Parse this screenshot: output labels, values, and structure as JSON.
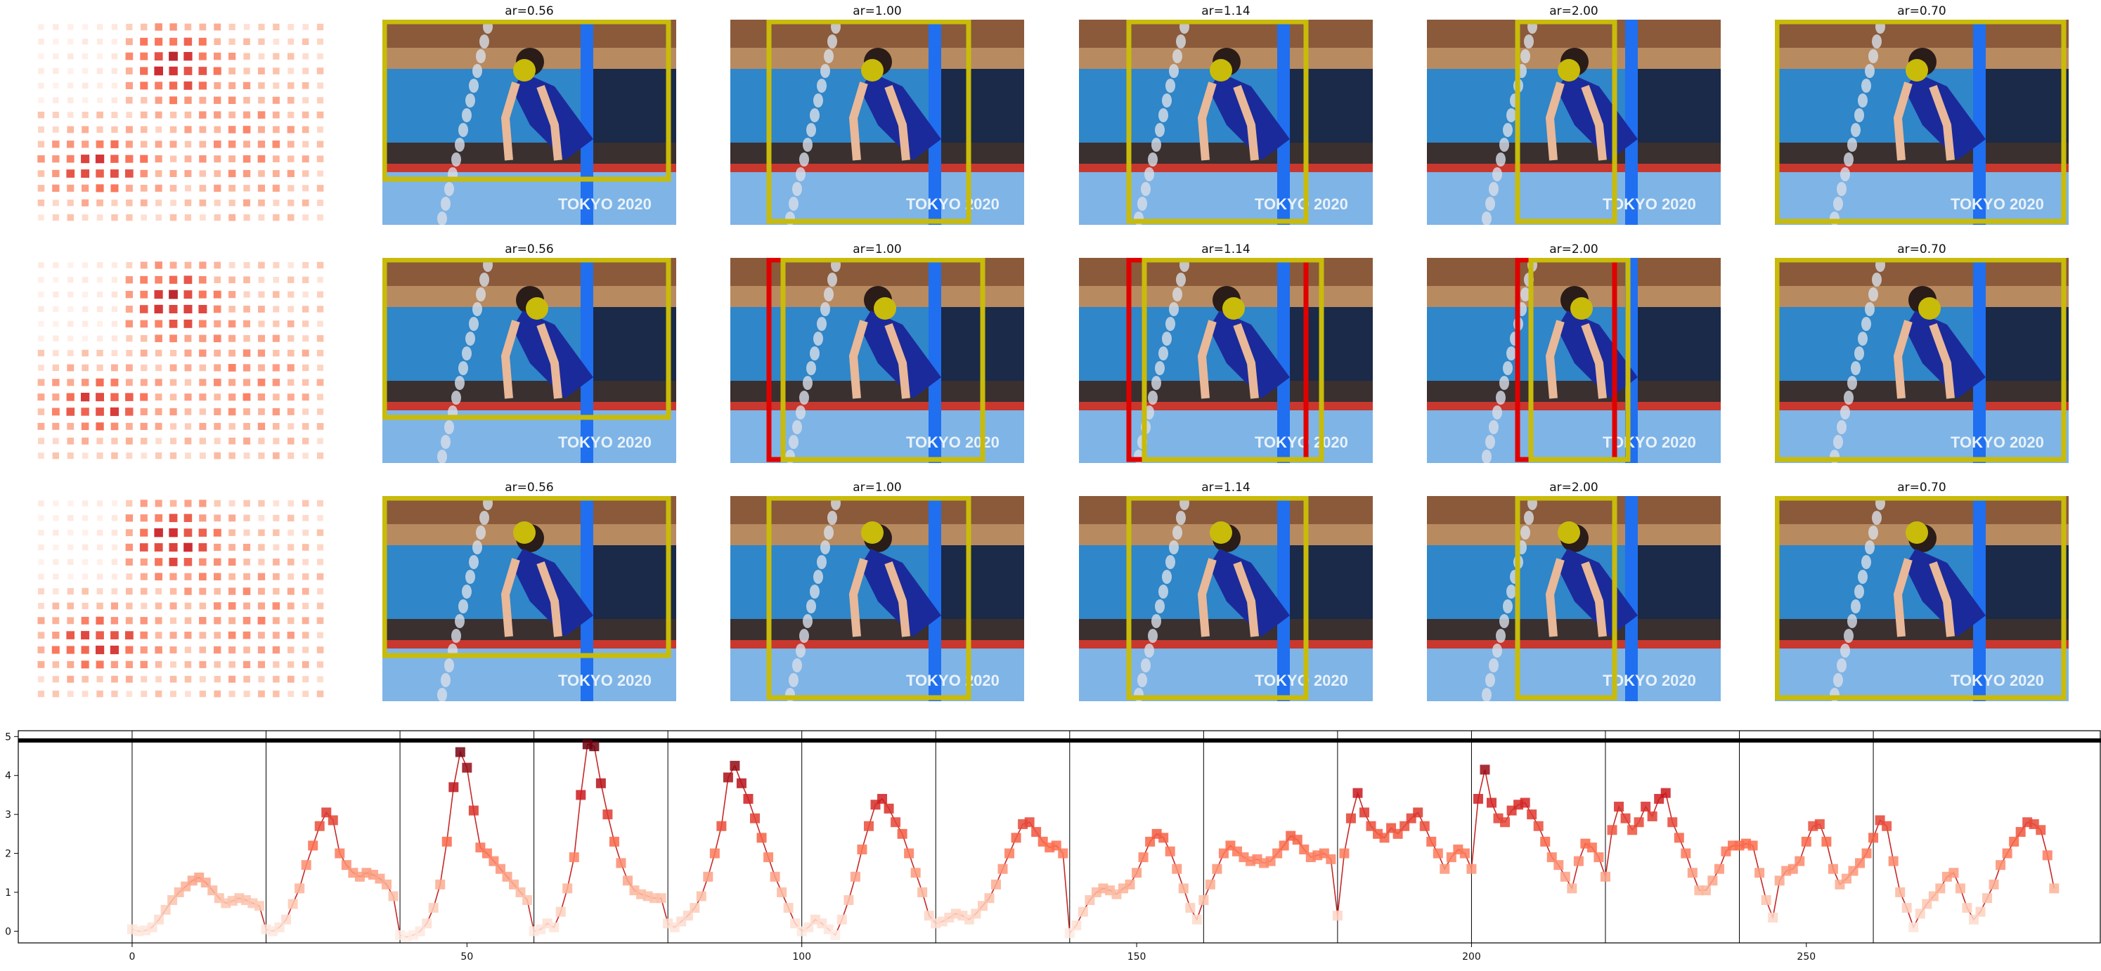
{
  "panels": {
    "aspect_ratios": [
      "ar=0.56",
      "ar=1.00",
      "ar=1.14",
      "ar=2.00",
      "ar=0.70"
    ],
    "crop_color": "#c8bb0a",
    "alt_crop_color": "#e00000",
    "photo_text": "TOKYO 2020"
  },
  "chart_data": {
    "type": "line",
    "x_ticks": [
      0,
      50,
      100,
      150,
      200,
      250
    ],
    "y_ticks": [
      0,
      1,
      2,
      3,
      4,
      5
    ],
    "xlim": [
      -17,
      294
    ],
    "ylim": [
      -0.3,
      5.15
    ],
    "threshold": 4.9,
    "segment_starts": [
      0,
      20,
      40,
      60,
      80,
      100,
      120,
      140,
      160,
      180,
      200,
      220,
      240,
      260
    ],
    "grid": false,
    "line_color": "#c62828",
    "values": [
      0.05,
      0.0,
      0.02,
      0.1,
      0.3,
      0.55,
      0.8,
      1.0,
      1.15,
      1.3,
      1.38,
      1.25,
      1.05,
      0.85,
      0.72,
      0.78,
      0.85,
      0.8,
      0.72,
      0.65,
      0.05,
      0.0,
      0.1,
      0.3,
      0.7,
      1.1,
      1.7,
      2.2,
      2.7,
      3.05,
      2.85,
      2.0,
      1.7,
      1.5,
      1.4,
      1.5,
      1.45,
      1.35,
      1.2,
      0.9,
      -0.1,
      -0.15,
      -0.1,
      0.0,
      0.2,
      0.6,
      1.2,
      2.3,
      3.7,
      4.6,
      4.2,
      3.1,
      2.15,
      2.0,
      1.8,
      1.6,
      1.4,
      1.2,
      1.0,
      0.8,
      0.0,
      0.05,
      0.2,
      0.1,
      0.5,
      1.1,
      1.9,
      3.5,
      4.8,
      4.75,
      3.8,
      3.0,
      2.3,
      1.75,
      1.3,
      1.05,
      0.95,
      0.9,
      0.85,
      0.85,
      0.2,
      0.1,
      0.25,
      0.4,
      0.6,
      0.9,
      1.4,
      2.0,
      2.7,
      3.95,
      4.25,
      3.8,
      3.4,
      2.9,
      2.4,
      1.9,
      1.4,
      1.0,
      0.6,
      0.2,
      0.0,
      0.1,
      0.3,
      0.2,
      0.05,
      -0.1,
      0.3,
      0.8,
      1.4,
      2.1,
      2.7,
      3.25,
      3.4,
      3.15,
      2.8,
      2.5,
      2.0,
      1.5,
      1.0,
      0.4,
      0.2,
      0.25,
      0.35,
      0.45,
      0.4,
      0.3,
      0.45,
      0.65,
      0.85,
      1.2,
      1.6,
      2.0,
      2.4,
      2.75,
      2.8,
      2.55,
      2.3,
      2.15,
      2.2,
      2.0,
      -0.05,
      0.15,
      0.5,
      0.8,
      1.0,
      1.1,
      1.05,
      0.95,
      1.1,
      1.2,
      1.5,
      1.9,
      2.3,
      2.5,
      2.4,
      2.05,
      1.6,
      1.1,
      0.6,
      0.3,
      0.8,
      1.2,
      1.6,
      2.0,
      2.2,
      2.05,
      1.9,
      1.8,
      1.85,
      1.75,
      1.8,
      2.0,
      2.2,
      2.45,
      2.35,
      2.1,
      1.9,
      1.95,
      2.0,
      1.85,
      0.4,
      2.0,
      2.9,
      3.55,
      3.05,
      2.7,
      2.5,
      2.4,
      2.65,
      2.5,
      2.7,
      2.9,
      3.05,
      2.7,
      2.3,
      2.0,
      1.6,
      1.9,
      2.1,
      2.0,
      1.6,
      3.4,
      4.15,
      3.3,
      2.9,
      2.8,
      3.1,
      3.25,
      3.3,
      3.0,
      2.7,
      2.3,
      1.9,
      1.7,
      1.4,
      1.1,
      1.8,
      2.25,
      2.15,
      1.9,
      1.4,
      2.6,
      3.2,
      2.9,
      2.6,
      2.8,
      3.2,
      2.95,
      3.4,
      3.55,
      2.8,
      2.4,
      2.0,
      1.5,
      1.05,
      1.05,
      1.3,
      1.6,
      2.05,
      2.2,
      2.2,
      2.25,
      2.2,
      1.5,
      0.8,
      0.35,
      1.3,
      1.55,
      1.6,
      1.8,
      2.3,
      2.7,
      2.75,
      2.3,
      1.6,
      1.2,
      1.35,
      1.55,
      1.75,
      2.0,
      2.4,
      2.85,
      2.7,
      1.8,
      1.0,
      0.6,
      0.1,
      0.45,
      0.7,
      0.9,
      1.1,
      1.4,
      1.5,
      1.1,
      0.6,
      0.3,
      0.5,
      0.85,
      1.2,
      1.7,
      2.0,
      2.3,
      2.55,
      2.8,
      2.75,
      2.6,
      1.95,
      1.1
    ]
  }
}
